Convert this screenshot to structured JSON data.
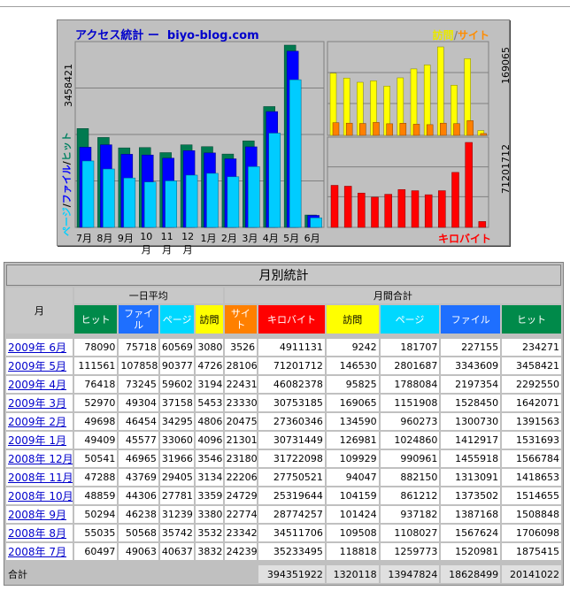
{
  "chart": {
    "title": "アクセス統計 ー  biyo-blog.com",
    "legend_right": {
      "visit": "訪問",
      "sep": "/",
      "site": "サイト"
    },
    "legend_kb": "キロバイト",
    "y_legend": {
      "page": "ページ",
      "file": "ファイル",
      "hit": "ヒット",
      "sep": "/"
    },
    "ymax_left": "3458421",
    "ymax_visits": "169065",
    "ymax_kb": "71201712",
    "colors": {
      "hit": "#007a50",
      "file": "#0000ff",
      "page": "#00ccff",
      "visit": "#ffff00",
      "site": "#ff8000",
      "kb": "#ff0000"
    }
  },
  "chart_data": {
    "type": "bar",
    "categories": [
      "7月",
      "8月",
      "9月",
      "10月",
      "11月",
      "12月",
      "1月",
      "2月",
      "3月",
      "4月",
      "5月",
      "6月"
    ],
    "series": [
      {
        "name": "ヒット",
        "values": [
          1875415,
          1706098,
          1508848,
          1514655,
          1418653,
          1566784,
          1531693,
          1391563,
          1642071,
          2292550,
          3458421,
          234271
        ]
      },
      {
        "name": "ファイル",
        "values": [
          1520981,
          1567624,
          1387168,
          1373502,
          1313091,
          1455918,
          1412917,
          1300730,
          1528450,
          2197354,
          3343609,
          227155
        ]
      },
      {
        "name": "ページ",
        "values": [
          1259773,
          1108027,
          937182,
          861212,
          882150,
          990961,
          1024860,
          960273,
          1151908,
          1788084,
          2801687,
          181707
        ]
      },
      {
        "name": "訪問",
        "values": [
          118818,
          109508,
          101424,
          104159,
          94047,
          109929,
          126981,
          134590,
          169065,
          95825,
          146530,
          9242
        ]
      },
      {
        "name": "サイト",
        "values": [
          24239,
          23342,
          22774,
          24729,
          22206,
          23180,
          21301,
          20475,
          23330,
          22431,
          28106,
          3526
        ]
      },
      {
        "name": "キロバイト",
        "values": [
          35233495,
          34511706,
          28774257,
          25319644,
          27750521,
          31722098,
          30731449,
          27360346,
          30753185,
          46082378,
          71201712,
          4911131
        ]
      }
    ]
  },
  "table": {
    "title": "月別統計",
    "month_header": "月",
    "daily_avg_header": "一日平均",
    "monthly_total_header": "月間合計",
    "daily_cols": [
      "ヒット",
      "ファイル",
      "ページ",
      "訪問"
    ],
    "total_cols": [
      "サイト",
      "キロバイト",
      "訪問",
      "ページ",
      "ファイル",
      "ヒット"
    ],
    "rows": [
      {
        "month": "2009年 6月",
        "d": [
          "78090",
          "75718",
          "60569",
          "3080"
        ],
        "t": [
          "3526",
          "4911131",
          "9242",
          "181707",
          "227155",
          "234271"
        ]
      },
      {
        "month": "2009年 5月",
        "d": [
          "111561",
          "107858",
          "90377",
          "4726"
        ],
        "t": [
          "28106",
          "71201712",
          "146530",
          "2801687",
          "3343609",
          "3458421"
        ]
      },
      {
        "month": "2009年 4月",
        "d": [
          "76418",
          "73245",
          "59602",
          "3194"
        ],
        "t": [
          "22431",
          "46082378",
          "95825",
          "1788084",
          "2197354",
          "2292550"
        ]
      },
      {
        "month": "2009年 3月",
        "d": [
          "52970",
          "49304",
          "37158",
          "5453"
        ],
        "t": [
          "23330",
          "30753185",
          "169065",
          "1151908",
          "1528450",
          "1642071"
        ]
      },
      {
        "month": "2009年 2月",
        "d": [
          "49698",
          "46454",
          "34295",
          "4806"
        ],
        "t": [
          "20475",
          "27360346",
          "134590",
          "960273",
          "1300730",
          "1391563"
        ]
      },
      {
        "month": "2009年 1月",
        "d": [
          "49409",
          "45577",
          "33060",
          "4096"
        ],
        "t": [
          "21301",
          "30731449",
          "126981",
          "1024860",
          "1412917",
          "1531693"
        ]
      },
      {
        "month": "2008年 12月",
        "d": [
          "50541",
          "46965",
          "31966",
          "3546"
        ],
        "t": [
          "23180",
          "31722098",
          "109929",
          "990961",
          "1455918",
          "1566784"
        ]
      },
      {
        "month": "2008年 11月",
        "d": [
          "47288",
          "43769",
          "29405",
          "3134"
        ],
        "t": [
          "22206",
          "27750521",
          "94047",
          "882150",
          "1313091",
          "1418653"
        ]
      },
      {
        "month": "2008年 10月",
        "d": [
          "48859",
          "44306",
          "27781",
          "3359"
        ],
        "t": [
          "24729",
          "25319644",
          "104159",
          "861212",
          "1373502",
          "1514655"
        ]
      },
      {
        "month": "2008年 9月",
        "d": [
          "50294",
          "46238",
          "31239",
          "3380"
        ],
        "t": [
          "22774",
          "28774257",
          "101424",
          "937182",
          "1387168",
          "1508848"
        ]
      },
      {
        "month": "2008年 8月",
        "d": [
          "55035",
          "50568",
          "35742",
          "3532"
        ],
        "t": [
          "23342",
          "34511706",
          "109508",
          "1108027",
          "1567624",
          "1706098"
        ]
      },
      {
        "month": "2008年 7月",
        "d": [
          "60497",
          "49063",
          "40637",
          "3832"
        ],
        "t": [
          "24239",
          "35233495",
          "118818",
          "1259773",
          "1520981",
          "1875415"
        ]
      }
    ],
    "total": {
      "label": "合計",
      "values": [
        "394351922",
        "1320118",
        "13947824",
        "18628499",
        "20141022"
      ]
    }
  }
}
